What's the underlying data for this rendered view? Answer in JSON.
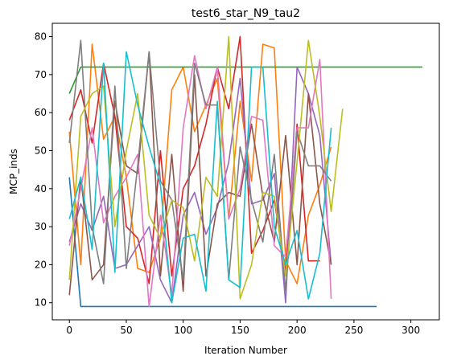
{
  "chart_data": {
    "type": "line",
    "title": "test6_star_N9_tau2",
    "xlabel": "Iteration Number",
    "ylabel": "MCP_inds",
    "xlim": [
      -15,
      325
    ],
    "ylim": [
      5.5,
      83.5
    ],
    "xticks": [
      0,
      50,
      100,
      150,
      200,
      250,
      300
    ],
    "yticks": [
      10,
      20,
      30,
      40,
      50,
      60,
      70,
      80
    ],
    "grid": false,
    "legend": "none",
    "series": [
      {
        "color": "#1f77b4",
        "x": [
          0,
          10,
          20,
          30,
          40,
          50,
          60,
          70,
          80,
          90,
          100,
          110,
          120,
          130,
          140,
          150,
          160,
          170,
          180,
          190,
          200,
          210,
          220,
          230,
          240,
          250,
          260,
          270
        ],
        "y": [
          43,
          9,
          9,
          9,
          9,
          9,
          9,
          9,
          9,
          9,
          9,
          9,
          9,
          9,
          9,
          9,
          9,
          9,
          9,
          9,
          9,
          9,
          9,
          9,
          9,
          9,
          9,
          9
        ]
      },
      {
        "color": "#ff7f0e",
        "x": [
          0,
          10,
          20,
          30,
          40,
          50,
          60,
          70,
          80,
          90,
          100,
          110,
          120,
          130,
          140,
          150,
          160,
          170,
          180,
          190,
          200,
          210,
          220,
          230
        ],
        "y": [
          55,
          20,
          78,
          53,
          59,
          43,
          19,
          18,
          27,
          66,
          72,
          55,
          62,
          69,
          32,
          63,
          42,
          78,
          77,
          21,
          15,
          33,
          41,
          51
        ]
      },
      {
        "color": "#2ca02c",
        "x": [
          0,
          10,
          20,
          30,
          40,
          50,
          60,
          70,
          80,
          90,
          100,
          110,
          120,
          130,
          140,
          150,
          160,
          170,
          180,
          190,
          200,
          210,
          220,
          230,
          240,
          250,
          260,
          270,
          280,
          290,
          300,
          310
        ],
        "y": [
          65,
          72,
          72,
          72,
          72,
          72,
          72,
          72,
          72,
          72,
          72,
          72,
          72,
          72,
          72,
          72,
          72,
          72,
          72,
          72,
          72,
          72,
          72,
          72,
          72,
          72,
          72,
          72,
          72,
          72,
          72,
          72
        ]
      },
      {
        "color": "#d62728",
        "x": [
          0,
          10,
          20,
          30,
          40,
          50,
          60,
          70,
          80,
          90,
          100,
          110,
          120,
          130,
          140,
          150,
          160,
          170,
          180,
          190,
          200,
          210,
          220
        ],
        "y": [
          58,
          66,
          52,
          73,
          59,
          30,
          27,
          15,
          50,
          17,
          40,
          46,
          57,
          72,
          61,
          80,
          23,
          29,
          37,
          18,
          57,
          21,
          21
        ]
      },
      {
        "color": "#9467bd",
        "x": [
          0,
          10,
          20,
          30,
          40,
          50,
          60,
          70,
          80,
          90,
          100,
          110,
          120,
          130,
          140,
          150,
          160,
          170,
          180,
          190,
          200,
          210,
          220,
          230
        ],
        "y": [
          26,
          36,
          29,
          38,
          19,
          20,
          25,
          30,
          16,
          10,
          33,
          39,
          28,
          35,
          47,
          69,
          36,
          37,
          44,
          10,
          72,
          65,
          54,
          20
        ]
      },
      {
        "color": "#8c564b",
        "x": [
          0,
          10,
          20,
          30,
          40,
          50,
          60,
          70,
          80,
          90,
          100,
          110,
          120,
          130,
          140,
          150,
          160,
          170,
          180,
          190,
          200,
          210,
          220,
          230
        ],
        "y": [
          12,
          43,
          16,
          20,
          63,
          46,
          44,
          76,
          17,
          49,
          13,
          70,
          17,
          36,
          39,
          38,
          57,
          38,
          26,
          54,
          20,
          65,
          36,
          20
        ]
      },
      {
        "color": "#e377c2",
        "x": [
          0,
          10,
          20,
          30,
          40,
          50,
          60,
          70,
          80,
          90,
          100,
          110,
          120,
          130,
          140,
          150,
          160,
          170,
          180,
          190,
          200,
          210,
          220,
          230
        ],
        "y": [
          25,
          40,
          56,
          31,
          38,
          43,
          49,
          9,
          33,
          12,
          56,
          75,
          61,
          72,
          32,
          40,
          59,
          58,
          25,
          22,
          56,
          56,
          74,
          11
        ]
      },
      {
        "color": "#7f7f7f",
        "x": [
          0,
          10,
          20,
          30,
          40,
          50,
          60,
          70,
          80,
          90,
          100,
          110,
          120,
          130,
          140,
          150,
          160,
          170,
          180,
          190,
          200,
          210,
          220,
          230
        ],
        "y": [
          52,
          79,
          30,
          15,
          67,
          19,
          46,
          76,
          42,
          37,
          16,
          73,
          62,
          62,
          16,
          51,
          37,
          26,
          49,
          13,
          55,
          46,
          46,
          42
        ]
      },
      {
        "color": "#bcbd22",
        "x": [
          0,
          10,
          20,
          30,
          40,
          50,
          60,
          70,
          80,
          90,
          100,
          110,
          120,
          130,
          140,
          150,
          160,
          170,
          180,
          190,
          200,
          210,
          220,
          230,
          240
        ],
        "y": [
          16,
          59,
          65,
          67,
          30,
          50,
          65,
          33,
          27,
          37,
          35,
          21,
          43,
          38,
          80,
          11,
          20,
          39,
          38,
          17,
          47,
          79,
          59,
          34,
          61
        ]
      },
      {
        "color": "#17becf",
        "x": [
          0,
          10,
          20,
          30,
          40,
          50,
          60,
          70,
          80,
          90,
          100,
          110,
          120,
          130,
          140,
          150,
          160,
          170,
          180,
          190,
          200,
          210,
          220,
          230
        ],
        "y": [
          32,
          43,
          24,
          73,
          18,
          76,
          62,
          51,
          41,
          10,
          27,
          28,
          13,
          63,
          16,
          14,
          72,
          72,
          30,
          20,
          29,
          11,
          23,
          56
        ]
      }
    ]
  }
}
